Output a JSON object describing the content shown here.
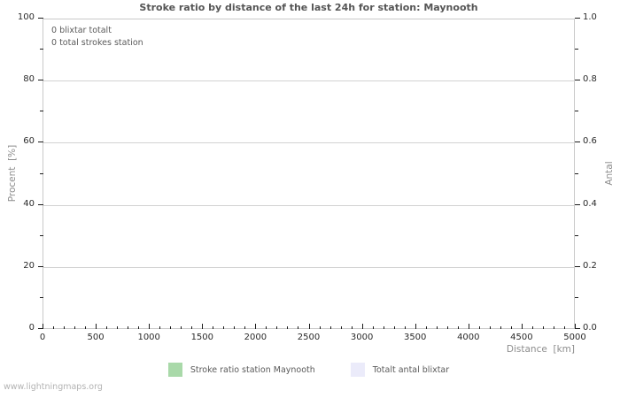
{
  "title": "Stroke ratio by distance of the last 24h for station: Maynooth",
  "annotation": {
    "line1": "0 blixtar totalt",
    "line2": "0 total strokes station"
  },
  "axes": {
    "left": {
      "label": "Procent  [%]",
      "ticks": [
        "0",
        "20",
        "40",
        "60",
        "80",
        "100"
      ]
    },
    "right": {
      "label": "Antal",
      "ticks": [
        "0.0",
        "0.2",
        "0.4",
        "0.6",
        "0.8",
        "1.0"
      ]
    },
    "bottom": {
      "label": "Distance  [km]",
      "ticks": [
        "0",
        "500",
        "1000",
        "1500",
        "2000",
        "2500",
        "3000",
        "3500",
        "4000",
        "4500",
        "5000"
      ]
    }
  },
  "legend": [
    {
      "label": "Stroke ratio station Maynooth",
      "color": "#a9d9a9"
    },
    {
      "label": "Totalt antal blixtar",
      "color": "#ebebfa"
    }
  ],
  "watermark": "www.lightningmaps.org",
  "colors": {
    "title_text": "#555555",
    "plot_border": "#c9c9c9",
    "gridline": "#d2d2d2",
    "tick_mark": "#1a1a1a",
    "tick_label_text": "#2a2a2a",
    "axis_title_text": "#8d8d8d",
    "annotation_text": "#5a5a5a",
    "legend_text": "#5a5a5a",
    "watermark_text": "#b3b3b3",
    "background": "#ffffff",
    "series_ratio_green": "#a9d9a9",
    "series_total_lavender": "#ebebfa"
  },
  "chart_data": {
    "type": "bar",
    "title": "Stroke ratio by distance of the last 24h for station: Maynooth",
    "xlabel": "Distance [km]",
    "ylabel_left": "Procent [%]",
    "ylabel_right": "Antal",
    "xlim": [
      0,
      5000
    ],
    "x_major_ticks": [
      0,
      500,
      1000,
      1500,
      2000,
      2500,
      3000,
      3500,
      4000,
      4500,
      5000
    ],
    "x_minor_tick_step": 100,
    "ylim_left": [
      0,
      100
    ],
    "y_left_major_ticks": [
      0,
      20,
      40,
      60,
      80,
      100
    ],
    "y_left_minor_tick_step": 10,
    "ylim_right": [
      0.0,
      1.0
    ],
    "y_right_major_ticks": [
      0.0,
      0.2,
      0.4,
      0.6,
      0.8,
      1.0
    ],
    "grid": "horizontal major gridlines only, solid light gray",
    "legend_position": "bottom-center",
    "series": [
      {
        "name": "Stroke ratio station Maynooth",
        "axis": "left",
        "color": "#a9d9a9",
        "values": []
      },
      {
        "name": "Totalt antal blixtar",
        "axis": "right",
        "color": "#ebebfa",
        "values": []
      }
    ],
    "annotations": [
      "0 blixtar totalt",
      "0 total strokes station"
    ],
    "note": "Chart is empty: 0 total strokes, no bars rendered"
  }
}
